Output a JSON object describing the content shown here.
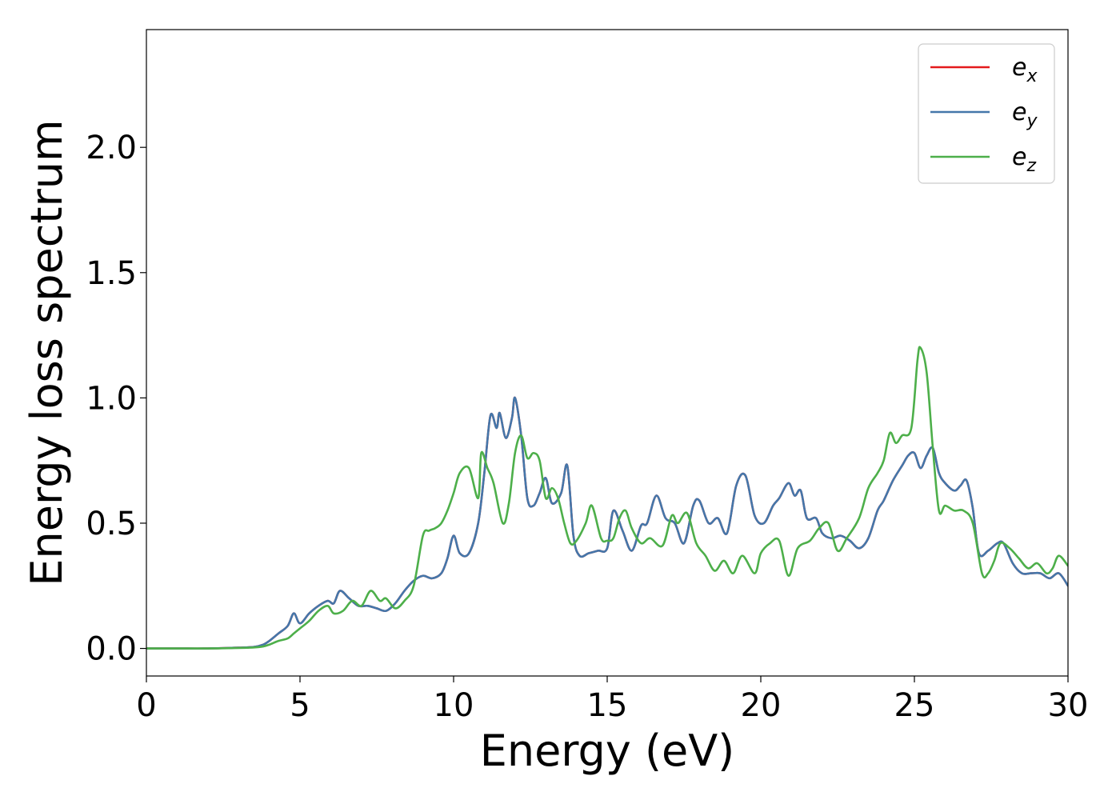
{
  "chart_data": {
    "type": "line",
    "title": "",
    "xlabel": "Energy (eV)",
    "ylabel": "Energy loss spectrum",
    "xlim": [
      0,
      30
    ],
    "ylim": [
      -0.11,
      2.47
    ],
    "xticks": [
      0,
      5,
      10,
      15,
      20,
      25,
      30
    ],
    "xtick_labels": [
      "0",
      "5",
      "10",
      "15",
      "20",
      "25",
      "30"
    ],
    "yticks": [
      0.0,
      0.5,
      1.0,
      1.5,
      2.0
    ],
    "ytick_labels": [
      "0.0",
      "0.5",
      "1.0",
      "1.5",
      "2.0"
    ],
    "grid": false,
    "legend_position": "top-right",
    "series": [
      {
        "name": "e",
        "subscript": "x",
        "color": "#e41a1c",
        "x": [
          0,
          1,
          2,
          3,
          3.5,
          3.8,
          4.0,
          4.3,
          4.6,
          4.8,
          5.0,
          5.3,
          5.6,
          5.9,
          6.1,
          6.3,
          6.6,
          6.9,
          7.2,
          7.5,
          7.8,
          8.1,
          8.4,
          8.7,
          9.0,
          9.3,
          9.6,
          9.8,
          10.0,
          10.2,
          10.5,
          10.8,
          11.0,
          11.2,
          11.4,
          11.5,
          11.7,
          11.9,
          12.0,
          12.2,
          12.4,
          12.6,
          12.8,
          13.0,
          13.2,
          13.5,
          13.7,
          13.9,
          14.1,
          14.4,
          14.7,
          15.0,
          15.2,
          15.5,
          15.8,
          16.1,
          16.3,
          16.6,
          16.9,
          17.2,
          17.5,
          17.8,
          18.0,
          18.3,
          18.6,
          18.9,
          19.2,
          19.5,
          19.8,
          20.1,
          20.4,
          20.6,
          20.9,
          21.1,
          21.3,
          21.5,
          21.8,
          22.0,
          22.3,
          22.6,
          22.9,
          23.2,
          23.5,
          23.8,
          24.0,
          24.3,
          24.6,
          24.8,
          25.0,
          25.2,
          25.4,
          25.6,
          25.8,
          26.0,
          26.3,
          26.5,
          26.7,
          26.9,
          27.1,
          27.4,
          27.7,
          27.9,
          28.2,
          28.5,
          28.8,
          29.1,
          29.4,
          29.7,
          30.0
        ],
        "y": [
          0.0,
          0.0,
          0.0,
          0.003,
          0.006,
          0.015,
          0.03,
          0.06,
          0.09,
          0.14,
          0.1,
          0.14,
          0.17,
          0.19,
          0.18,
          0.23,
          0.2,
          0.17,
          0.17,
          0.16,
          0.15,
          0.18,
          0.23,
          0.27,
          0.29,
          0.28,
          0.3,
          0.36,
          0.45,
          0.38,
          0.38,
          0.5,
          0.7,
          0.93,
          0.88,
          0.94,
          0.84,
          0.92,
          1.0,
          0.85,
          0.6,
          0.57,
          0.62,
          0.68,
          0.58,
          0.62,
          0.73,
          0.45,
          0.37,
          0.38,
          0.39,
          0.4,
          0.55,
          0.47,
          0.39,
          0.49,
          0.5,
          0.61,
          0.52,
          0.5,
          0.42,
          0.57,
          0.59,
          0.5,
          0.52,
          0.46,
          0.65,
          0.69,
          0.53,
          0.5,
          0.57,
          0.6,
          0.66,
          0.61,
          0.63,
          0.52,
          0.52,
          0.46,
          0.44,
          0.45,
          0.43,
          0.4,
          0.44,
          0.55,
          0.59,
          0.67,
          0.73,
          0.77,
          0.78,
          0.72,
          0.77,
          0.8,
          0.7,
          0.66,
          0.63,
          0.65,
          0.67,
          0.56,
          0.38,
          0.39,
          0.42,
          0.42,
          0.34,
          0.3,
          0.3,
          0.3,
          0.28,
          0.3,
          0.25
        ]
      },
      {
        "name": "e",
        "subscript": "y",
        "color": "#4477aa",
        "x": [
          0,
          1,
          2,
          3,
          3.5,
          3.8,
          4.0,
          4.3,
          4.6,
          4.8,
          5.0,
          5.3,
          5.6,
          5.9,
          6.1,
          6.3,
          6.6,
          6.9,
          7.2,
          7.5,
          7.8,
          8.1,
          8.4,
          8.7,
          9.0,
          9.3,
          9.6,
          9.8,
          10.0,
          10.2,
          10.5,
          10.8,
          11.0,
          11.2,
          11.4,
          11.5,
          11.7,
          11.9,
          12.0,
          12.2,
          12.4,
          12.6,
          12.8,
          13.0,
          13.2,
          13.5,
          13.7,
          13.9,
          14.1,
          14.4,
          14.7,
          15.0,
          15.2,
          15.5,
          15.8,
          16.1,
          16.3,
          16.6,
          16.9,
          17.2,
          17.5,
          17.8,
          18.0,
          18.3,
          18.6,
          18.9,
          19.2,
          19.5,
          19.8,
          20.1,
          20.4,
          20.6,
          20.9,
          21.1,
          21.3,
          21.5,
          21.8,
          22.0,
          22.3,
          22.6,
          22.9,
          23.2,
          23.5,
          23.8,
          24.0,
          24.3,
          24.6,
          24.8,
          25.0,
          25.2,
          25.4,
          25.6,
          25.8,
          26.0,
          26.3,
          26.5,
          26.7,
          26.9,
          27.1,
          27.4,
          27.7,
          27.9,
          28.2,
          28.5,
          28.8,
          29.1,
          29.4,
          29.7,
          30.0
        ],
        "y": [
          0.0,
          0.0,
          0.0,
          0.003,
          0.006,
          0.015,
          0.03,
          0.06,
          0.09,
          0.14,
          0.1,
          0.14,
          0.17,
          0.19,
          0.18,
          0.23,
          0.2,
          0.17,
          0.17,
          0.16,
          0.15,
          0.18,
          0.23,
          0.27,
          0.29,
          0.28,
          0.3,
          0.36,
          0.45,
          0.38,
          0.38,
          0.5,
          0.7,
          0.93,
          0.88,
          0.94,
          0.84,
          0.92,
          1.0,
          0.85,
          0.6,
          0.57,
          0.62,
          0.68,
          0.58,
          0.62,
          0.73,
          0.45,
          0.37,
          0.38,
          0.39,
          0.4,
          0.55,
          0.47,
          0.39,
          0.49,
          0.5,
          0.61,
          0.52,
          0.5,
          0.42,
          0.57,
          0.59,
          0.5,
          0.52,
          0.46,
          0.65,
          0.69,
          0.53,
          0.5,
          0.57,
          0.6,
          0.66,
          0.61,
          0.63,
          0.52,
          0.52,
          0.46,
          0.44,
          0.45,
          0.43,
          0.4,
          0.44,
          0.55,
          0.59,
          0.67,
          0.73,
          0.77,
          0.78,
          0.72,
          0.77,
          0.8,
          0.7,
          0.66,
          0.63,
          0.65,
          0.67,
          0.56,
          0.38,
          0.39,
          0.42,
          0.42,
          0.34,
          0.3,
          0.3,
          0.3,
          0.28,
          0.3,
          0.25
        ]
      },
      {
        "name": "e",
        "subscript": "z",
        "color": "#4daf4a",
        "x": [
          0,
          1,
          2,
          3,
          3.5,
          3.8,
          4.0,
          4.3,
          4.6,
          4.8,
          5.0,
          5.3,
          5.6,
          5.9,
          6.1,
          6.4,
          6.7,
          7.0,
          7.3,
          7.6,
          7.8,
          8.1,
          8.4,
          8.7,
          9.0,
          9.2,
          9.4,
          9.6,
          9.8,
          10.0,
          10.2,
          10.5,
          10.8,
          10.9,
          11.1,
          11.3,
          11.6,
          11.8,
          12.0,
          12.2,
          12.4,
          12.6,
          12.8,
          13.0,
          13.2,
          13.4,
          13.6,
          13.8,
          14.0,
          14.3,
          14.5,
          14.8,
          15.0,
          15.2,
          15.4,
          15.6,
          15.8,
          16.1,
          16.4,
          16.8,
          17.1,
          17.3,
          17.6,
          17.9,
          18.2,
          18.5,
          18.8,
          19.1,
          19.4,
          19.8,
          20.0,
          20.3,
          20.6,
          20.9,
          21.2,
          21.6,
          21.9,
          22.2,
          22.5,
          22.8,
          23.2,
          23.5,
          23.8,
          24.0,
          24.2,
          24.4,
          24.6,
          24.9,
          25.1,
          25.2,
          25.4,
          25.6,
          25.8,
          26.0,
          26.3,
          26.6,
          26.9,
          27.2,
          27.4,
          27.6,
          27.8,
          28.1,
          28.4,
          28.7,
          29.0,
          29.3,
          29.5,
          29.7,
          30.0
        ],
        "y": [
          0.0,
          0.0,
          0.0,
          0.002,
          0.004,
          0.008,
          0.015,
          0.03,
          0.04,
          0.06,
          0.08,
          0.11,
          0.15,
          0.17,
          0.14,
          0.15,
          0.19,
          0.17,
          0.23,
          0.19,
          0.2,
          0.16,
          0.19,
          0.25,
          0.45,
          0.47,
          0.48,
          0.5,
          0.55,
          0.62,
          0.7,
          0.72,
          0.6,
          0.78,
          0.72,
          0.66,
          0.5,
          0.58,
          0.78,
          0.85,
          0.76,
          0.78,
          0.75,
          0.6,
          0.64,
          0.6,
          0.5,
          0.42,
          0.43,
          0.5,
          0.57,
          0.44,
          0.43,
          0.44,
          0.52,
          0.55,
          0.48,
          0.42,
          0.44,
          0.41,
          0.53,
          0.5,
          0.54,
          0.42,
          0.37,
          0.31,
          0.35,
          0.3,
          0.37,
          0.3,
          0.38,
          0.42,
          0.43,
          0.29,
          0.4,
          0.43,
          0.48,
          0.5,
          0.39,
          0.44,
          0.52,
          0.64,
          0.7,
          0.75,
          0.86,
          0.82,
          0.85,
          0.88,
          1.15,
          1.2,
          1.1,
          0.8,
          0.55,
          0.57,
          0.55,
          0.55,
          0.5,
          0.3,
          0.3,
          0.35,
          0.42,
          0.4,
          0.36,
          0.32,
          0.34,
          0.3,
          0.32,
          0.37,
          0.33
        ]
      }
    ]
  }
}
